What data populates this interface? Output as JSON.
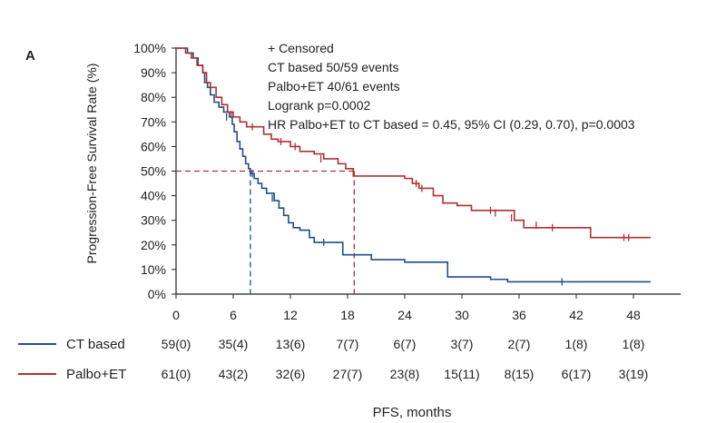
{
  "chart_data": {
    "type": "line",
    "panel_label": "A",
    "ylabel": "Progression-Free Survival Rate (%)",
    "xlabel": "PFS, months",
    "xlim": [
      0,
      52
    ],
    "ylim": [
      0,
      100
    ],
    "x_ticks": [
      0,
      6,
      12,
      18,
      24,
      30,
      36,
      42,
      48
    ],
    "y_ticks": [
      "0%",
      "10%",
      "20%",
      "30%",
      "40%",
      "50%",
      "60%",
      "70%",
      "80%",
      "90%",
      "100%"
    ],
    "annotations": [
      "+ Censored",
      "CT based  50/59 events",
      "Palbo+ET  40/61 events",
      "Logrank p=0.0002",
      "HR Palbo+ET to CT based = 0.45, 95% CI (0.29, 0.70),  p=0.0003"
    ],
    "median_line": {
      "y": 50,
      "medians": [
        7.8,
        18.7
      ]
    },
    "series": [
      {
        "name": "CT based",
        "color": "#1f4e8c",
        "steps": [
          [
            0,
            100
          ],
          [
            1.2,
            98
          ],
          [
            1.8,
            96
          ],
          [
            2.3,
            93
          ],
          [
            2.8,
            90
          ],
          [
            3.0,
            86
          ],
          [
            3.3,
            84
          ],
          [
            3.6,
            81
          ],
          [
            4.0,
            78
          ],
          [
            4.5,
            76
          ],
          [
            5.0,
            74
          ],
          [
            5.6,
            72
          ],
          [
            5.9,
            69
          ],
          [
            6.1,
            66
          ],
          [
            6.4,
            62
          ],
          [
            6.7,
            59
          ],
          [
            7.0,
            56
          ],
          [
            7.3,
            53
          ],
          [
            7.6,
            51
          ],
          [
            7.8,
            49
          ],
          [
            8.2,
            47
          ],
          [
            8.6,
            45
          ],
          [
            9.0,
            43
          ],
          [
            9.5,
            41
          ],
          [
            10.3,
            38
          ],
          [
            10.8,
            35
          ],
          [
            11.3,
            32
          ],
          [
            11.8,
            29
          ],
          [
            12.3,
            27
          ],
          [
            13.0,
            26
          ],
          [
            14.0,
            23
          ],
          [
            14.5,
            21
          ],
          [
            17.5,
            16
          ],
          [
            20.5,
            14
          ],
          [
            24.0,
            13
          ],
          [
            28.5,
            7
          ],
          [
            33.0,
            6
          ],
          [
            34.8,
            5
          ],
          [
            49.8,
            5
          ]
        ],
        "censored": [
          [
            5.3,
            72
          ],
          [
            8.0,
            49
          ],
          [
            10.1,
            39
          ],
          [
            15.5,
            21
          ],
          [
            40.5,
            5
          ]
        ],
        "at_risk": [
          "59(0)",
          "35(4)",
          "13(6)",
          "7(7)",
          "6(7)",
          "3(7)",
          "2(7)",
          "1(8)",
          "1(8)"
        ]
      },
      {
        "name": "Palbo+ET",
        "color": "#b03030",
        "steps": [
          [
            0,
            100
          ],
          [
            1.0,
            98
          ],
          [
            1.6,
            96
          ],
          [
            2.2,
            93
          ],
          [
            2.8,
            90
          ],
          [
            3.2,
            86
          ],
          [
            3.6,
            84
          ],
          [
            4.2,
            80
          ],
          [
            4.8,
            77
          ],
          [
            5.4,
            74
          ],
          [
            6.0,
            72
          ],
          [
            6.7,
            70
          ],
          [
            7.4,
            68
          ],
          [
            9.2,
            65
          ],
          [
            10.0,
            63
          ],
          [
            10.7,
            62
          ],
          [
            12.0,
            60
          ],
          [
            13.0,
            58
          ],
          [
            14.5,
            57
          ],
          [
            15.5,
            55
          ],
          [
            17.0,
            53
          ],
          [
            17.8,
            51
          ],
          [
            18.6,
            48
          ],
          [
            24.0,
            47
          ],
          [
            24.8,
            45
          ],
          [
            25.5,
            43
          ],
          [
            27.0,
            40
          ],
          [
            28.0,
            37
          ],
          [
            29.5,
            36
          ],
          [
            31.0,
            34
          ],
          [
            35.5,
            30
          ],
          [
            36.5,
            27
          ],
          [
            42.0,
            27
          ],
          [
            43.5,
            23
          ],
          [
            49.8,
            23
          ]
        ],
        "censored": [
          [
            5.8,
            73
          ],
          [
            8.0,
            68
          ],
          [
            11.0,
            62
          ],
          [
            12.5,
            60
          ],
          [
            15.2,
            55
          ],
          [
            25.2,
            45
          ],
          [
            25.8,
            43
          ],
          [
            33.0,
            34
          ],
          [
            33.5,
            33
          ],
          [
            35.2,
            31
          ],
          [
            37.8,
            28
          ],
          [
            39.5,
            27
          ],
          [
            47.0,
            23
          ],
          [
            47.5,
            23
          ]
        ],
        "at_risk": [
          "61(0)",
          "43(2)",
          "32(6)",
          "27(7)",
          "23(8)",
          "15(11)",
          "8(15)",
          "6(17)",
          "3(19)"
        ]
      }
    ]
  }
}
